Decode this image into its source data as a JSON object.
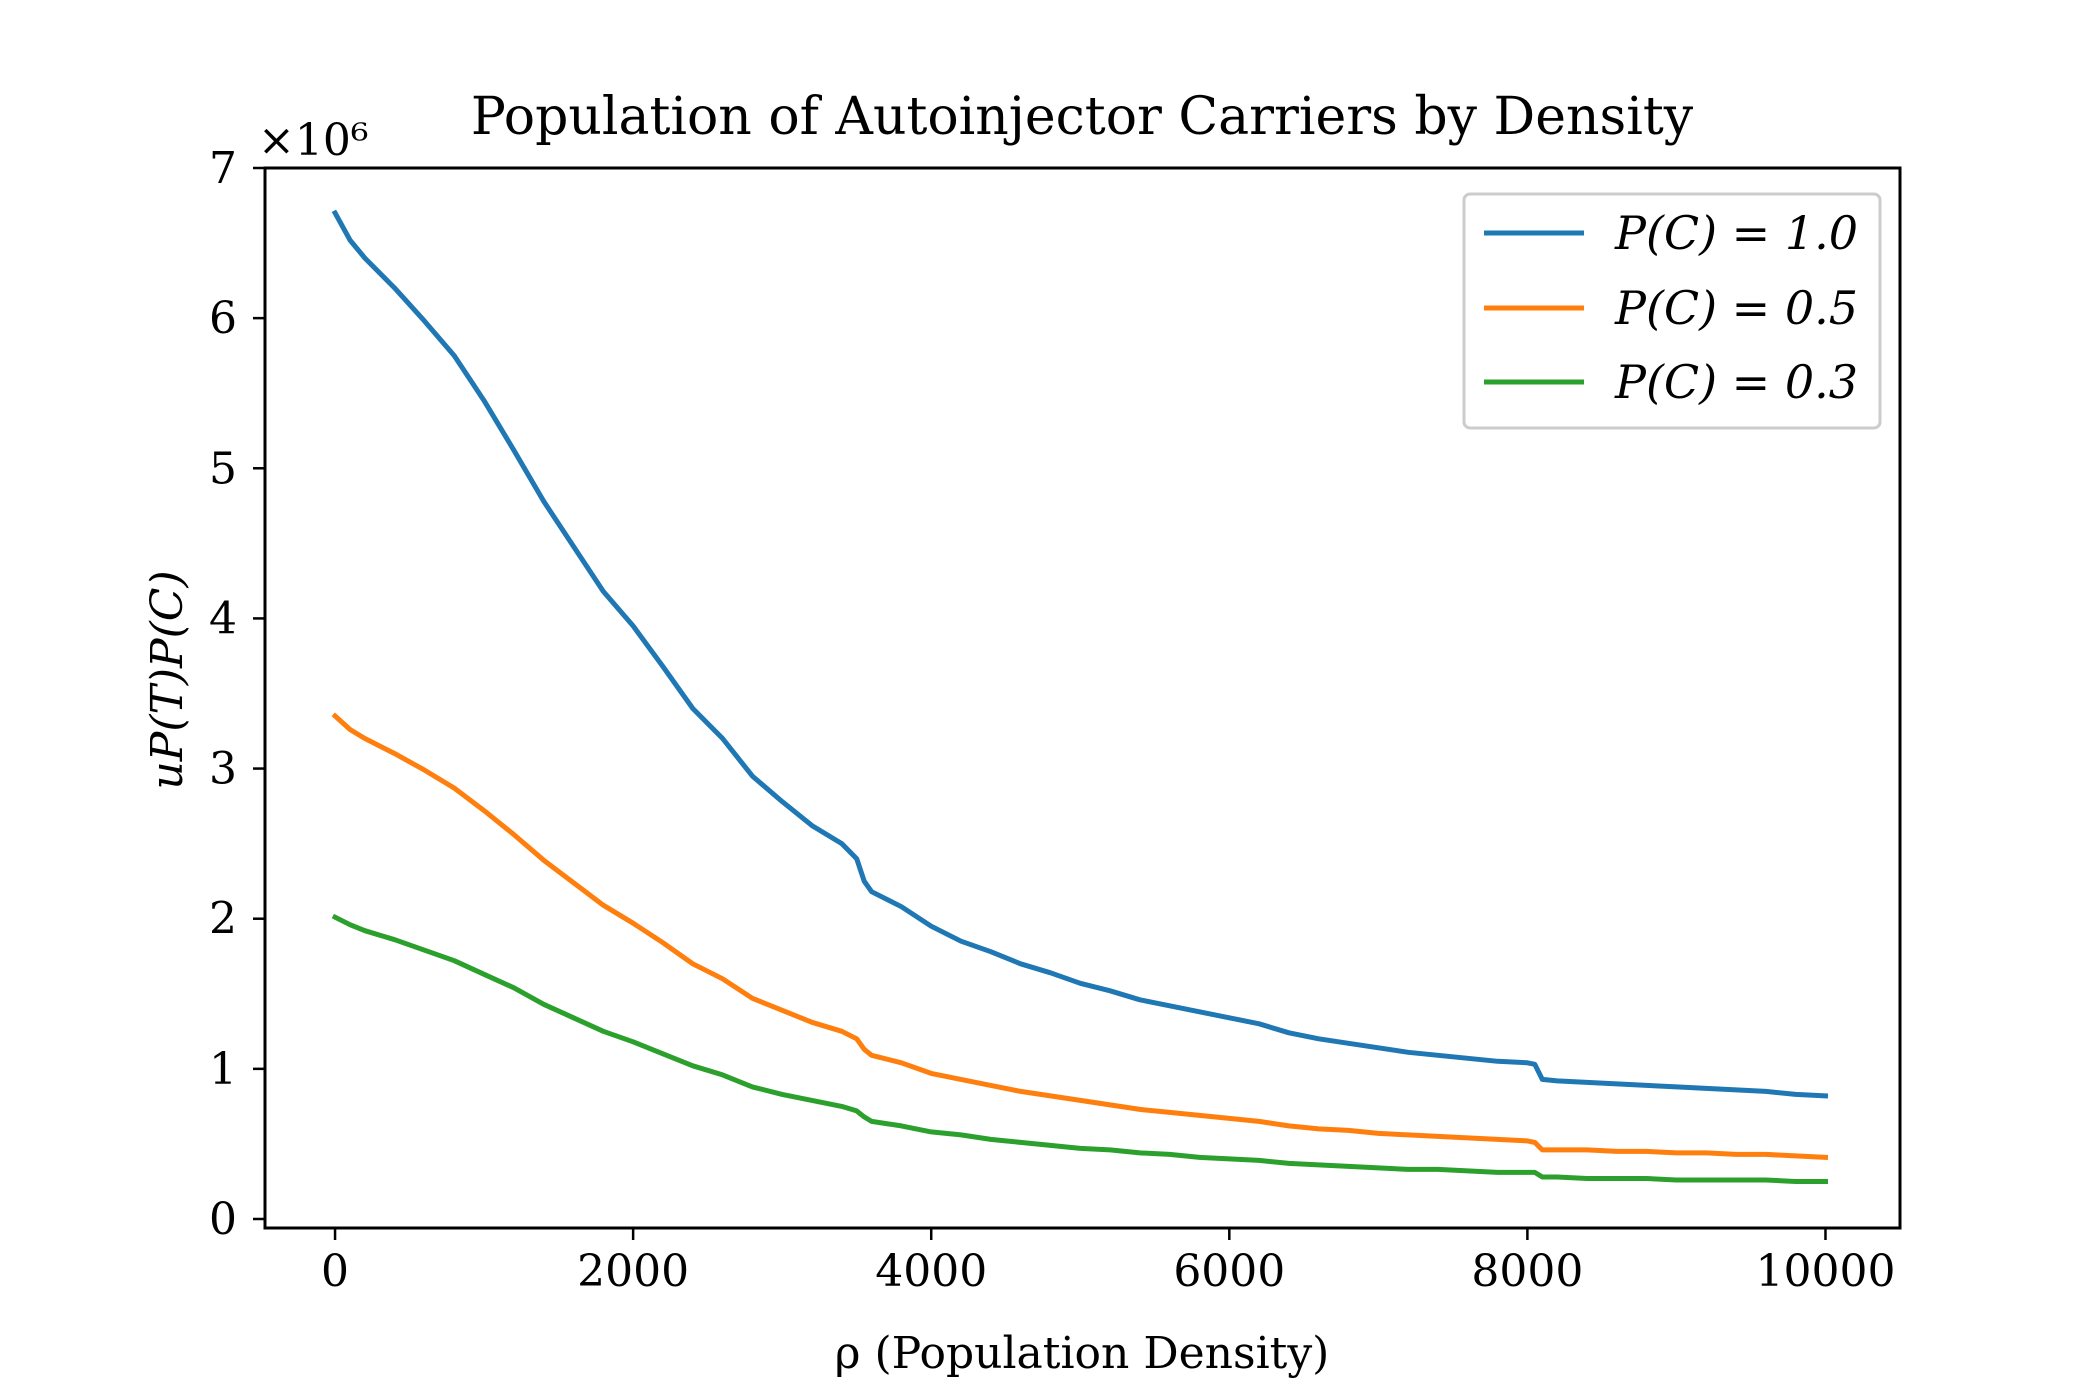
{
  "chart_data": {
    "type": "line",
    "title": "Population of Autoinjector Carriers by Density",
    "xlabel": "ρ (Population Density)",
    "ylabel": "uP(T)P(C)",
    "y_multiplier_label": "×10⁶",
    "xlim": [
      -470,
      10500
    ],
    "ylim": [
      -0.06,
      7.0
    ],
    "xticks": [
      0,
      2000,
      4000,
      6000,
      8000,
      10000
    ],
    "xtick_labels": [
      "0",
      "2000",
      "4000",
      "6000",
      "8000",
      "10000"
    ],
    "yticks": [
      0,
      1,
      2,
      3,
      4,
      5,
      6,
      7
    ],
    "ytick_labels": [
      "0",
      "1",
      "2",
      "3",
      "4",
      "5",
      "6",
      "7"
    ],
    "grid": false,
    "legend_position": "top-right",
    "x": [
      0,
      100,
      200,
      400,
      600,
      800,
      1000,
      1200,
      1400,
      1600,
      1800,
      2000,
      2200,
      2400,
      2600,
      2800,
      3000,
      3200,
      3400,
      3500,
      3550,
      3600,
      3800,
      4000,
      4200,
      4400,
      4600,
      4800,
      5000,
      5200,
      5400,
      5600,
      5800,
      6000,
      6200,
      6400,
      6600,
      6800,
      7000,
      7200,
      7400,
      7600,
      7800,
      8000,
      8050,
      8100,
      8200,
      8400,
      8600,
      8800,
      9000,
      9200,
      9400,
      9600,
      9800,
      10000
    ],
    "series": [
      {
        "name": "P(C) = 1.0",
        "color": "#1f77b4",
        "values": [
          6.7,
          6.52,
          6.4,
          6.2,
          5.98,
          5.75,
          5.45,
          5.12,
          4.78,
          4.48,
          4.18,
          3.95,
          3.68,
          3.4,
          3.2,
          2.95,
          2.78,
          2.62,
          2.5,
          2.4,
          2.25,
          2.18,
          2.08,
          1.95,
          1.85,
          1.78,
          1.7,
          1.64,
          1.57,
          1.52,
          1.46,
          1.42,
          1.38,
          1.34,
          1.3,
          1.24,
          1.2,
          1.17,
          1.14,
          1.11,
          1.09,
          1.07,
          1.05,
          1.04,
          1.03,
          0.93,
          0.92,
          0.91,
          0.9,
          0.89,
          0.88,
          0.87,
          0.86,
          0.85,
          0.83,
          0.82
        ]
      },
      {
        "name": "P(C) = 0.5",
        "color": "#ff7f0e",
        "values": [
          3.35,
          3.26,
          3.2,
          3.1,
          2.99,
          2.87,
          2.72,
          2.56,
          2.39,
          2.24,
          2.09,
          1.97,
          1.84,
          1.7,
          1.6,
          1.47,
          1.39,
          1.31,
          1.25,
          1.2,
          1.13,
          1.09,
          1.04,
          0.97,
          0.93,
          0.89,
          0.85,
          0.82,
          0.79,
          0.76,
          0.73,
          0.71,
          0.69,
          0.67,
          0.65,
          0.62,
          0.6,
          0.59,
          0.57,
          0.56,
          0.55,
          0.54,
          0.53,
          0.52,
          0.51,
          0.46,
          0.46,
          0.46,
          0.45,
          0.45,
          0.44,
          0.44,
          0.43,
          0.43,
          0.42,
          0.41
        ]
      },
      {
        "name": "P(C) = 0.3",
        "color": "#2ca02c",
        "values": [
          2.01,
          1.96,
          1.92,
          1.86,
          1.79,
          1.72,
          1.63,
          1.54,
          1.43,
          1.34,
          1.25,
          1.18,
          1.1,
          1.02,
          0.96,
          0.88,
          0.83,
          0.79,
          0.75,
          0.72,
          0.68,
          0.65,
          0.62,
          0.58,
          0.56,
          0.53,
          0.51,
          0.49,
          0.47,
          0.46,
          0.44,
          0.43,
          0.41,
          0.4,
          0.39,
          0.37,
          0.36,
          0.35,
          0.34,
          0.33,
          0.33,
          0.32,
          0.31,
          0.31,
          0.31,
          0.28,
          0.28,
          0.27,
          0.27,
          0.27,
          0.26,
          0.26,
          0.26,
          0.26,
          0.25,
          0.25
        ]
      }
    ]
  }
}
